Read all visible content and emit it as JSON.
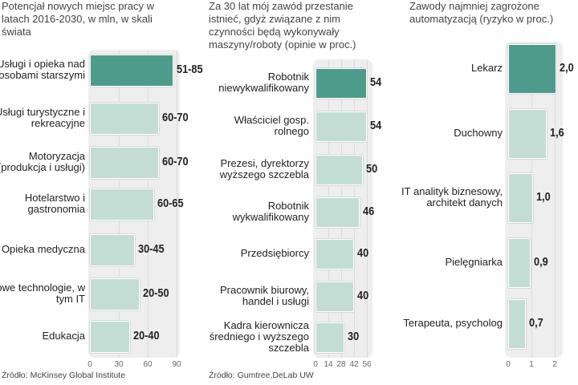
{
  "chart_data": [
    {
      "type": "bar",
      "title": "Potencjał  nowych miejsc pracy w latach 2016-2030, w mln, w skali świata",
      "categories": [
        "Usługi i opieka nad osobami starszymi",
        "Usługi turystyczne i rekreacyjne",
        "Motoryzacja (produkcja i usługi)",
        "Hotelarstwo i gastronomia",
        "Opieka medyczna",
        "Nowe technologie, w tym IT",
        "Edukacja"
      ],
      "labels": [
        "51-85",
        "60-70",
        "60-70",
        "60-65",
        "30-45",
        "20-50",
        "20-40"
      ],
      "values": [
        85,
        70,
        70,
        65,
        45,
        50,
        40
      ],
      "xticks": [
        "0",
        "30",
        "60",
        "90"
      ],
      "xlim": [
        0,
        90
      ],
      "source": "Źródło: McKinsey Global Institute",
      "highlight": 0
    },
    {
      "type": "bar",
      "title": "Za 30 lat mój zawód przestanie istnieć, gdyż związane z nim czynności będą wykonywały  maszyny/roboty (opinie w proc.)",
      "categories": [
        "Robotnik niewykwalifikowany",
        "Właściciel gosp. rolnego",
        "Prezesi, dyrektorzy wyższego szczebla",
        "Robotnik wykwalifikowany",
        "Przedsiębiorcy",
        "Pracownik biurowy, handel i usługi",
        "Kadra kierownicza średniego i wyższego szczebla"
      ],
      "labels": [
        "54",
        "54",
        "50",
        "46",
        "40",
        "40",
        "30"
      ],
      "values": [
        54,
        54,
        50,
        46,
        40,
        40,
        30
      ],
      "xticks": [
        "0",
        "14",
        "28",
        "42",
        "56"
      ],
      "xlim": [
        0,
        56
      ],
      "source": "Źródło: Gumtree,DeLab UW",
      "highlight": 0
    },
    {
      "type": "bar",
      "title": "Zawody najmniej zagrożone automatyzacją (ryzyko w proc.)",
      "categories": [
        "Lekarz",
        "Duchowny",
        "IT analityk biznesowy, architekt danych",
        "Pielęgniarka",
        "Terapeuta, psycholog"
      ],
      "labels": [
        "2,0",
        "1,6",
        "1,0",
        "0,9",
        "0,7"
      ],
      "values": [
        2.0,
        1.6,
        1.0,
        0.9,
        0.7
      ],
      "xticks": [
        "0",
        "1",
        "2"
      ],
      "xlim": [
        0,
        2
      ],
      "source": "",
      "highlight": 0
    }
  ],
  "colors": {
    "highlight": "#4f9b8b",
    "normal": "#c3ddd5"
  }
}
